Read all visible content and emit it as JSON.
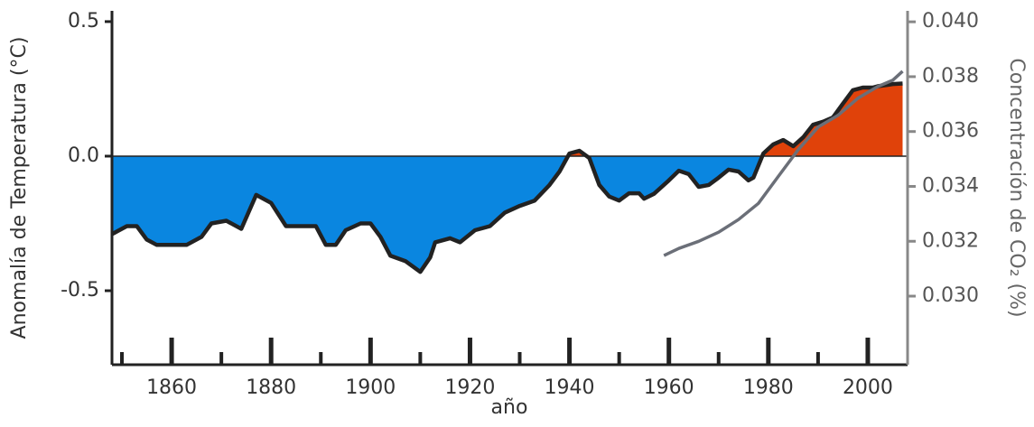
{
  "chart_data": {
    "type": "line",
    "xlabel": "año",
    "ylabel": "Anomalía de Temperatura (°C)",
    "y2label": "Concentración de CO₂ (%)",
    "xlim": [
      1848,
      2008
    ],
    "xticks": [
      1860,
      1880,
      1900,
      1920,
      1940,
      1960,
      1980,
      2000
    ],
    "xminorticks": [
      1850,
      1870,
      1890,
      1910,
      1930,
      1950,
      1970,
      1990
    ],
    "ylim": [
      -0.775,
      0.54
    ],
    "yticks": [
      {
        "value": 0.5,
        "label": "0.5"
      },
      {
        "value": 0,
        "label": "0.0"
      },
      {
        "value": -0.5,
        "label": "-0.5"
      }
    ],
    "y2lim": [
      0.0275,
      0.0404
    ],
    "y2ticks": [
      {
        "value": 0.03,
        "label": "0.030"
      },
      {
        "value": 0.032,
        "label": "0.032"
      },
      {
        "value": 0.034,
        "label": "0.034"
      },
      {
        "value": 0.036,
        "label": "0.036"
      },
      {
        "value": 0.038,
        "label": "0.038"
      },
      {
        "value": 0.04,
        "label": "0.040"
      }
    ],
    "series": [
      {
        "color": "#222222",
        "fill_below": "#0a86e0",
        "fill_above": "#e0420a",
        "x": [
          1848,
          1849,
          1851,
          1853,
          1855,
          1857,
          1860,
          1863,
          1866,
          1868,
          1871,
          1874,
          1877,
          1880,
          1883,
          1886,
          1889,
          1891,
          1893,
          1895,
          1898,
          1900,
          1902,
          1904,
          1907,
          1910,
          1912,
          1913,
          1916,
          1918,
          1921,
          1924,
          1927,
          1930,
          1933,
          1936,
          1938,
          1940,
          1942,
          1944,
          1946,
          1948,
          1950,
          1952,
          1954,
          1955,
          1957,
          1960,
          1962,
          1964,
          1966,
          1968,
          1970,
          1972,
          1974,
          1976,
          1977,
          1979,
          1981,
          1983,
          1985,
          1987,
          1989,
          1991,
          1993,
          1995,
          1997,
          1999,
          2001,
          2002,
          2004,
          2005,
          2007
        ],
        "values": [
          -0.29,
          -0.28,
          -0.26,
          -0.26,
          -0.31,
          -0.33,
          -0.33,
          -0.33,
          -0.3,
          -0.25,
          -0.24,
          -0.27,
          -0.144,
          -0.174,
          -0.26,
          -0.26,
          -0.26,
          -0.33,
          -0.33,
          -0.275,
          -0.25,
          -0.25,
          -0.3,
          -0.37,
          -0.39,
          -0.43,
          -0.376,
          -0.32,
          -0.305,
          -0.32,
          -0.275,
          -0.26,
          -0.21,
          -0.185,
          -0.165,
          -0.107,
          -0.057,
          0.01,
          0.02,
          -0.007,
          -0.107,
          -0.15,
          -0.165,
          -0.138,
          -0.138,
          -0.158,
          -0.14,
          -0.09,
          -0.054,
          -0.067,
          -0.114,
          -0.107,
          -0.08,
          -0.05,
          -0.057,
          -0.09,
          -0.08,
          0.01,
          0.044,
          0.06,
          0.037,
          0.07,
          0.117,
          0.128,
          0.144,
          0.195,
          0.245,
          0.255,
          0.255,
          0.26,
          0.265,
          0.268,
          0.27
        ]
      },
      {
        "color": "#6b6f78",
        "axis": "y2",
        "x": [
          1959,
          1962,
          1966,
          1970,
          1974,
          1978,
          1982,
          1986,
          1990,
          1994,
          1998,
          2002,
          2005,
          2007
        ],
        "values": [
          0.03148,
          0.03174,
          0.032,
          0.03233,
          0.03279,
          0.03338,
          0.03436,
          0.03534,
          0.03616,
          0.03659,
          0.03721,
          0.03764,
          0.03787,
          0.0382
        ]
      }
    ]
  }
}
